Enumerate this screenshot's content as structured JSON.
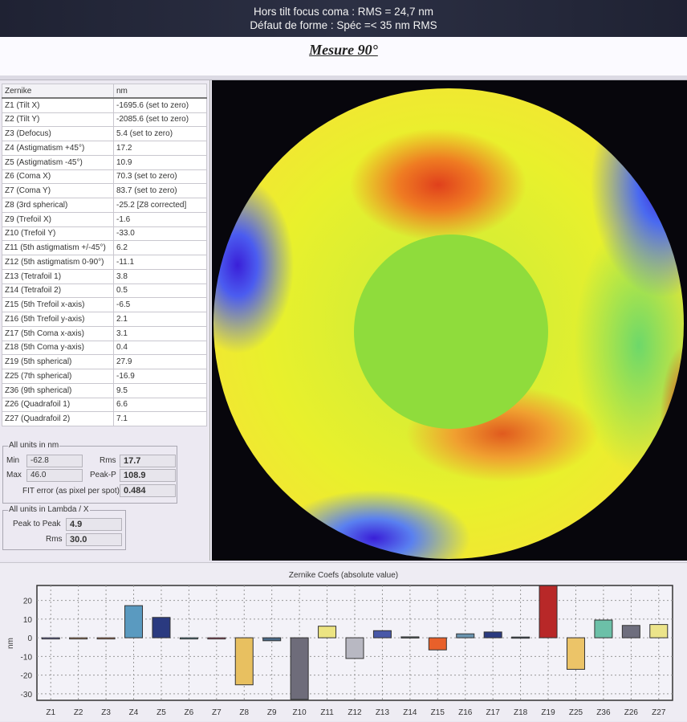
{
  "header": {
    "line1": "Hors tilt focus coma : RMS = 24,7 nm",
    "line2": "Défaut de forme : Spéc =< 35 nm RMS"
  },
  "title": "Mesure 90°",
  "table": {
    "headers": [
      "Zernike",
      "nm"
    ],
    "rows": [
      [
        "Z1 (Tilt X)",
        "-1695.6  (set to zero)"
      ],
      [
        "Z2 (Tilt Y)",
        "-2085.6  (set to zero)"
      ],
      [
        "Z3 (Defocus)",
        "5.4  (set to zero)"
      ],
      [
        "Z4 (Astigmatism +45°)",
        "17.2"
      ],
      [
        "Z5 (Astigmatism -45°)",
        "10.9"
      ],
      [
        "Z6 (Coma X)",
        "70.3  (set to zero)"
      ],
      [
        "Z7 (Coma Y)",
        "83.7  (set to zero)"
      ],
      [
        "Z8 (3rd spherical)",
        "-25.2 [Z8 corrected]"
      ],
      [
        "Z9 (Trefoil X)",
        "-1.6"
      ],
      [
        "Z10 (Trefoil Y)",
        "-33.0"
      ],
      [
        "Z11 (5th astigmatism +/-45°)",
        "6.2"
      ],
      [
        "Z12 (5th astigmatism  0-90°)",
        "-11.1"
      ],
      [
        "Z13 (Tetrafoil 1)",
        "3.8"
      ],
      [
        "Z14 (Tetrafoil 2)",
        "0.5"
      ],
      [
        "Z15 (5th Trefoil x-axis)",
        "-6.5"
      ],
      [
        "Z16 (5th Trefoil y-axis)",
        "2.1"
      ],
      [
        "Z17 (5th Coma x-axis)",
        "3.1"
      ],
      [
        "Z18 (5th Coma y-axis)",
        "0.4"
      ],
      [
        "Z19 (5th spherical)",
        "27.9"
      ],
      [
        "Z25 (7th spherical)",
        "-16.9"
      ],
      [
        "Z36 (9th spherical)",
        "9.5"
      ],
      [
        "Z26 (Quadrafoil 1)",
        "6.6"
      ],
      [
        "Z27 (Quadrafoil 2)",
        "7.1"
      ]
    ]
  },
  "stats_nm": {
    "legend": "All units in nm",
    "min_label": "Min",
    "min": "-62.8",
    "max_label": "Max",
    "max": "46.0",
    "rms_label": "Rms",
    "rms": "17.7",
    "pp_label": "Peak-P",
    "pp": "108.9",
    "fit_label": "FIT error (as pixel per spot)",
    "fit": "0.484"
  },
  "stats_lambda": {
    "legend": "All units in Lambda / X",
    "pp_label": "Peak to Peak",
    "pp": "4.9",
    "rms_label": "Rms",
    "rms": "30.0"
  },
  "chart_data": {
    "type": "bar",
    "title": "Zernike Coefs (absolute value)",
    "ylabel": "nm",
    "ylim": [
      -33.5,
      28
    ],
    "yticks": [
      20,
      10,
      0,
      -10,
      -20,
      -30
    ],
    "grid": true,
    "categories": [
      "Z1",
      "Z2",
      "Z3",
      "Z4",
      "Z5",
      "Z6",
      "Z7",
      "Z8",
      "Z9",
      "Z10",
      "Z11",
      "Z12",
      "Z13",
      "Z14",
      "Z15",
      "Z16",
      "Z17",
      "Z18",
      "Z19",
      "Z25",
      "Z36",
      "Z26",
      "Z27"
    ],
    "values": [
      0,
      0,
      0,
      17.2,
      10.9,
      0,
      0,
      -25.2,
      -1.6,
      -33.0,
      6.2,
      -11.1,
      3.8,
      0.5,
      -6.5,
      2.1,
      3.1,
      0.4,
      27.9,
      -16.9,
      9.5,
      6.6,
      7.1
    ],
    "colors": [
      "#8f8fd8",
      "#e8b080",
      "#e89a70",
      "#5a9ac0",
      "#2a3a80",
      "#6aa0b0",
      "#d86080",
      "#e8c060",
      "#4a6a88",
      "#6e6c7a",
      "#ece482",
      "#b8b8c2",
      "#4858a8",
      "#5a6a6a",
      "#e8602a",
      "#6a94b0",
      "#2a3a80",
      "#4a5a6a",
      "#b82828",
      "#ecc468",
      "#6cc0a8",
      "#6e6e7e",
      "#ece48a"
    ]
  }
}
